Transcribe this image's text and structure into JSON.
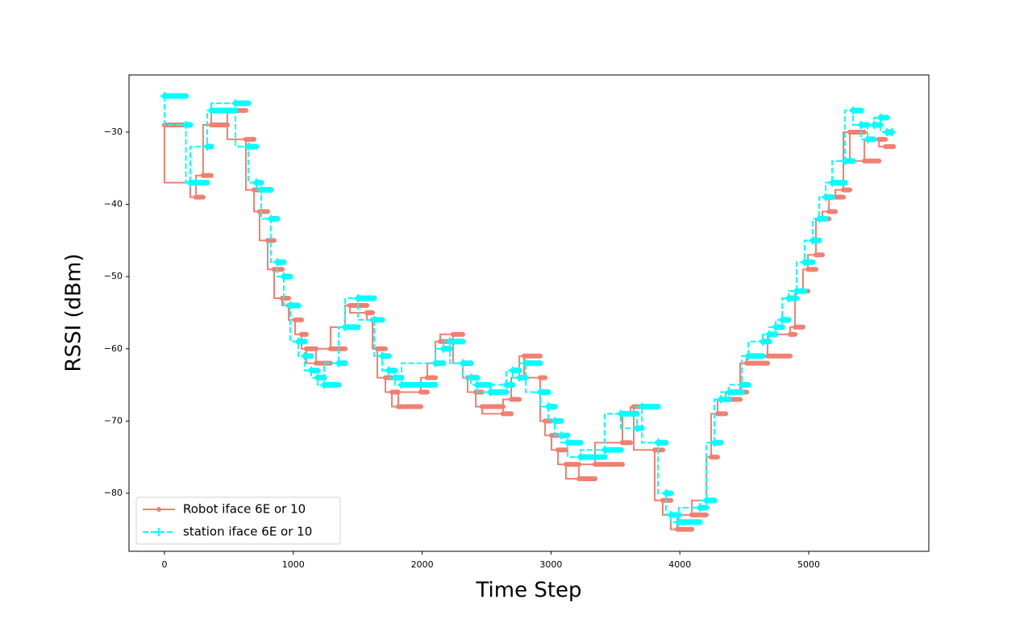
{
  "chart_data": {
    "type": "step-line",
    "xlabel": "Time Step",
    "ylabel": "RSSI (dBm)",
    "xlim": [
      -275,
      5932
    ],
    "ylim": [
      -88.04,
      -22.08
    ],
    "xticks": [
      0,
      1000,
      2000,
      3000,
      4000,
      5000
    ],
    "yticks": [
      {
        "value": -80,
        "label": "−80"
      },
      {
        "value": -70,
        "label": "−70"
      },
      {
        "value": -60,
        "label": "−60"
      },
      {
        "value": -50,
        "label": "−50"
      },
      {
        "value": -40,
        "label": "−40"
      },
      {
        "value": -30,
        "label": "−30"
      }
    ],
    "legend": "lower left",
    "series": [
      {
        "name": "Robot iface 6E or 10",
        "color": "#f08070",
        "marker": "dot",
        "dash": "solid",
        "x": [
          0,
          200,
          244,
          300,
          363,
          488,
          632,
          695,
          738,
          801,
          851,
          914,
          964,
          1014,
          1064,
          1101,
          1176,
          1289,
          1402,
          1439,
          1571,
          1615,
          1652,
          1715,
          1765,
          1815,
          1990,
          2040,
          2103,
          2140,
          2240,
          2315,
          2353,
          2416,
          2466,
          2628,
          2691,
          2754,
          2791,
          2916,
          2954,
          3004,
          3054,
          3116,
          3217,
          3342,
          3554,
          3617,
          3642,
          3805,
          3867,
          3930,
          3980,
          4093,
          4205,
          4243,
          4293,
          4356,
          4468,
          4518,
          4681,
          4856,
          4894,
          4956,
          4994,
          5056,
          5106,
          5157,
          5207,
          5269,
          5319,
          5432,
          5545,
          5595,
          5657
        ],
        "values": [
          -29,
          -37,
          -39,
          -36,
          -29,
          -27,
          -31,
          -38,
          -41,
          -45,
          -49,
          -53,
          -54,
          -56,
          -58,
          -60,
          -62,
          -60,
          -57,
          -54,
          -55,
          -56,
          -60,
          -64,
          -66,
          -68,
          -66,
          -64,
          -62,
          -59,
          -58,
          -62,
          -64,
          -66,
          -68,
          -69,
          -67,
          -64,
          -61,
          -64,
          -70,
          -72,
          -74,
          -76,
          -78,
          -76,
          -73,
          -69,
          -68,
          -74,
          -81,
          -83,
          -85,
          -83,
          -81,
          -75,
          -69,
          -67,
          -66,
          -62,
          -61,
          -58,
          -57,
          -52,
          -49,
          -47,
          -42,
          -41,
          -39,
          -38,
          -30,
          -34,
          -31,
          -32,
          -32
        ]
      },
      {
        "name": "station iface 6E or 10",
        "color": "#00ffff",
        "marker": "plus",
        "dash": "dashed",
        "x": [
          0,
          166,
          200,
          332,
          363,
          551,
          651,
          713,
          751,
          826,
          876,
          926,
          976,
          1039,
          1089,
          1139,
          1189,
          1239,
          1352,
          1402,
          1502,
          1627,
          1690,
          1740,
          1790,
          1840,
          2103,
          2165,
          2215,
          2315,
          2378,
          2428,
          2528,
          2653,
          2703,
          2754,
          2804,
          2916,
          2979,
          3029,
          3079,
          3129,
          3229,
          3417,
          3542,
          3667,
          3705,
          3830,
          3892,
          3930,
          3993,
          4155,
          4205,
          4268,
          4318,
          4381,
          4481,
          4531,
          4643,
          4694,
          4744,
          4794,
          4844,
          4906,
          4969,
          5031,
          5081,
          5131,
          5182,
          5282,
          5344,
          5407,
          5457,
          5507,
          5557,
          5607,
          5645
        ],
        "values": [
          -25,
          -29,
          -37,
          -32,
          -27,
          -26,
          -32,
          -37,
          -38,
          -42,
          -48,
          -50,
          -54,
          -59,
          -61,
          -63,
          -64,
          -65,
          -62,
          -57,
          -53,
          -56,
          -61,
          -63,
          -64,
          -65,
          -62,
          -60,
          -59,
          -62,
          -64,
          -65,
          -66,
          -65,
          -63,
          -64,
          -62,
          -66,
          -68,
          -70,
          -72,
          -73,
          -75,
          -74,
          -69,
          -71,
          -68,
          -73,
          -80,
          -83,
          -84,
          -82,
          -81,
          -73,
          -67,
          -66,
          -65,
          -61,
          -59,
          -58,
          -57,
          -56,
          -53,
          -52,
          -48,
          -45,
          -42,
          -39,
          -37,
          -34,
          -27,
          -29,
          -31,
          -29,
          -28,
          -30,
          -30
        ]
      }
    ]
  }
}
